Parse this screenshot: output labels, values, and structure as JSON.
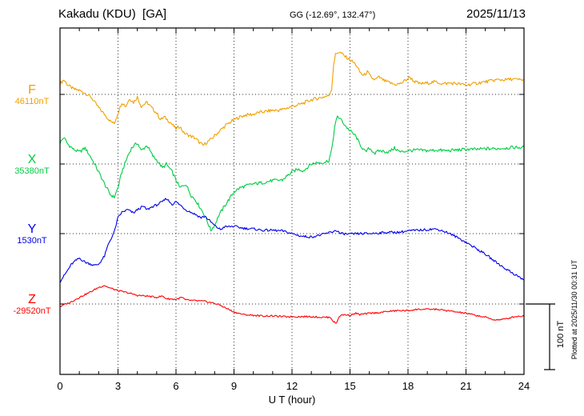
{
  "header": {
    "title": "Kakadu (KDU)  [GA]",
    "coords": "GG (-12.69°, 132.47°)",
    "date": "2025/11/13"
  },
  "footer": {
    "xlabel": "U T (hour)"
  },
  "side": {
    "scale_label": "100 nT",
    "plotted_at": "Plotted at 2025/11/30 00:31 UT"
  },
  "chart_data": {
    "type": "line",
    "title": "Kakadu (KDU) [GA] magnetogram 2025/11/13",
    "xlabel": "U T (hour)",
    "x_range": [
      0,
      24
    ],
    "x_ticks": [
      0,
      3,
      6,
      9,
      12,
      15,
      18,
      21,
      24
    ],
    "grid": "dotted",
    "scale_bar_nT": 100,
    "points_format": "[hour UT, offset in nT from base_nT]",
    "series": [
      {
        "name": "F",
        "label": "F",
        "base_label": "46110nT",
        "base_nT": 46110,
        "color": "#f0a000",
        "noise_nT": 2.5,
        "points": [
          [
            0,
            16
          ],
          [
            0.2,
            22
          ],
          [
            0.4,
            14
          ],
          [
            0.7,
            8
          ],
          [
            1,
            6
          ],
          [
            1.3,
            2
          ],
          [
            1.6,
            -4
          ],
          [
            2,
            -20
          ],
          [
            2.3,
            -30
          ],
          [
            2.6,
            -40
          ],
          [
            2.8,
            -44
          ],
          [
            3,
            -28
          ],
          [
            3.2,
            -12
          ],
          [
            3.4,
            -18
          ],
          [
            3.6,
            -6
          ],
          [
            3.8,
            -12
          ],
          [
            4,
            -4
          ],
          [
            4.2,
            -18
          ],
          [
            4.5,
            -12
          ],
          [
            4.8,
            -22
          ],
          [
            5,
            -28
          ],
          [
            5.2,
            -38
          ],
          [
            5.4,
            -34
          ],
          [
            5.7,
            -42
          ],
          [
            6,
            -52
          ],
          [
            6.2,
            -48
          ],
          [
            6.4,
            -58
          ],
          [
            6.7,
            -62
          ],
          [
            7,
            -66
          ],
          [
            7.2,
            -72
          ],
          [
            7.4,
            -77
          ],
          [
            7.6,
            -72
          ],
          [
            7.8,
            -68
          ],
          [
            8,
            -62
          ],
          [
            8.3,
            -54
          ],
          [
            8.6,
            -46
          ],
          [
            9,
            -38
          ],
          [
            9.3,
            -34
          ],
          [
            9.6,
            -31
          ],
          [
            10,
            -30
          ],
          [
            10.3,
            -27
          ],
          [
            10.6,
            -26
          ],
          [
            11,
            -24
          ],
          [
            11.3,
            -24
          ],
          [
            11.6,
            -22
          ],
          [
            12,
            -18
          ],
          [
            12.3,
            -16
          ],
          [
            12.6,
            -13
          ],
          [
            13,
            -8
          ],
          [
            13.3,
            -6
          ],
          [
            13.6,
            -4
          ],
          [
            13.9,
            -2
          ],
          [
            14.05,
            8
          ],
          [
            14.15,
            45
          ],
          [
            14.25,
            60
          ],
          [
            14.4,
            64
          ],
          [
            14.55,
            62
          ],
          [
            14.7,
            58
          ],
          [
            14.9,
            54
          ],
          [
            15.1,
            50
          ],
          [
            15.3,
            45
          ],
          [
            15.5,
            34
          ],
          [
            15.7,
            28
          ],
          [
            15.9,
            34
          ],
          [
            16.1,
            25
          ],
          [
            16.3,
            22
          ],
          [
            16.5,
            26
          ],
          [
            16.8,
            20
          ],
          [
            17,
            18
          ],
          [
            17.3,
            15
          ],
          [
            17.6,
            16
          ],
          [
            17.9,
            22
          ],
          [
            18.1,
            26
          ],
          [
            18.3,
            20
          ],
          [
            18.6,
            16
          ],
          [
            19,
            17
          ],
          [
            19.4,
            19
          ],
          [
            19.8,
            16
          ],
          [
            20.2,
            17
          ],
          [
            20.6,
            16
          ],
          [
            21,
            14
          ],
          [
            21.4,
            16
          ],
          [
            21.8,
            18
          ],
          [
            22.2,
            20
          ],
          [
            22.6,
            22
          ],
          [
            23,
            22
          ],
          [
            23.4,
            23
          ],
          [
            23.7,
            22
          ],
          [
            24,
            22
          ]
        ]
      },
      {
        "name": "X",
        "label": "X",
        "base_label": "35380nT",
        "base_nT": 35380,
        "color": "#00cc44",
        "noise_nT": 2.5,
        "points": [
          [
            0,
            32
          ],
          [
            0.2,
            40
          ],
          [
            0.4,
            30
          ],
          [
            0.7,
            22
          ],
          [
            1,
            18
          ],
          [
            1.3,
            24
          ],
          [
            1.6,
            10
          ],
          [
            2,
            -12
          ],
          [
            2.3,
            -30
          ],
          [
            2.6,
            -46
          ],
          [
            2.8,
            -50
          ],
          [
            3,
            -36
          ],
          [
            3.2,
            -12
          ],
          [
            3.5,
            12
          ],
          [
            3.7,
            24
          ],
          [
            4,
            32
          ],
          [
            4.2,
            20
          ],
          [
            4.5,
            28
          ],
          [
            4.8,
            12
          ],
          [
            5,
            6
          ],
          [
            5.3,
            -6
          ],
          [
            5.5,
            0
          ],
          [
            5.8,
            -12
          ],
          [
            6,
            -24
          ],
          [
            6.2,
            -36
          ],
          [
            6.5,
            -30
          ],
          [
            6.8,
            -48
          ],
          [
            7,
            -54
          ],
          [
            7.3,
            -68
          ],
          [
            7.5,
            -78
          ],
          [
            7.8,
            -100
          ],
          [
            8,
            -92
          ],
          [
            8.2,
            -78
          ],
          [
            8.5,
            -64
          ],
          [
            9,
            -42
          ],
          [
            9.3,
            -36
          ],
          [
            9.6,
            -33
          ],
          [
            10,
            -30
          ],
          [
            10.5,
            -28
          ],
          [
            11,
            -25
          ],
          [
            11.5,
            -24
          ],
          [
            12,
            -12
          ],
          [
            12.3,
            -8
          ],
          [
            12.6,
            -10
          ],
          [
            13,
            0
          ],
          [
            13.3,
            2
          ],
          [
            13.6,
            2
          ],
          [
            13.9,
            5
          ],
          [
            14.05,
            20
          ],
          [
            14.2,
            55
          ],
          [
            14.35,
            72
          ],
          [
            14.5,
            68
          ],
          [
            14.65,
            62
          ],
          [
            14.8,
            56
          ],
          [
            15,
            50
          ],
          [
            15.3,
            42
          ],
          [
            15.5,
            30
          ],
          [
            15.8,
            18
          ],
          [
            16,
            24
          ],
          [
            16.3,
            16
          ],
          [
            16.5,
            20
          ],
          [
            17,
            18
          ],
          [
            17.3,
            24
          ],
          [
            17.6,
            18
          ],
          [
            18,
            20
          ],
          [
            18.5,
            21
          ],
          [
            19,
            20
          ],
          [
            19.5,
            21
          ],
          [
            20,
            20
          ],
          [
            20.5,
            21
          ],
          [
            21,
            22
          ],
          [
            21.5,
            22
          ],
          [
            22,
            23
          ],
          [
            22.5,
            23
          ],
          [
            23,
            24
          ],
          [
            23.5,
            25
          ],
          [
            24,
            25
          ]
        ]
      },
      {
        "name": "Y",
        "label": "Y",
        "base_label": "1530nT",
        "base_nT": 1530,
        "color": "#0000ee",
        "noise_nT": 1.8,
        "points": [
          [
            0,
            -72
          ],
          [
            0.2,
            -64
          ],
          [
            0.4,
            -55
          ],
          [
            0.6,
            -46
          ],
          [
            0.8,
            -41
          ],
          [
            1,
            -37
          ],
          [
            1.3,
            -43
          ],
          [
            1.6,
            -46
          ],
          [
            1.8,
            -48
          ],
          [
            2,
            -46
          ],
          [
            2.3,
            -34
          ],
          [
            2.5,
            -16
          ],
          [
            2.8,
            2
          ],
          [
            3,
            24
          ],
          [
            3.2,
            32
          ],
          [
            3.5,
            36
          ],
          [
            3.8,
            31
          ],
          [
            4,
            36
          ],
          [
            4.3,
            41
          ],
          [
            4.5,
            36
          ],
          [
            4.8,
            41
          ],
          [
            5,
            43
          ],
          [
            5.3,
            48
          ],
          [
            5.5,
            53
          ],
          [
            5.8,
            44
          ],
          [
            6,
            48
          ],
          [
            6.3,
            41
          ],
          [
            6.5,
            36
          ],
          [
            7,
            29
          ],
          [
            7.3,
            24
          ],
          [
            7.5,
            26
          ],
          [
            8,
            12
          ],
          [
            8.3,
            6
          ],
          [
            8.5,
            10
          ],
          [
            9,
            11
          ],
          [
            9.5,
            8
          ],
          [
            10,
            7
          ],
          [
            10.5,
            5
          ],
          [
            11,
            5
          ],
          [
            11.5,
            4
          ],
          [
            12,
            0
          ],
          [
            12.5,
            -4
          ],
          [
            13,
            -5
          ],
          [
            13.5,
            -2
          ],
          [
            14,
            2
          ],
          [
            14.3,
            5
          ],
          [
            14.5,
            0
          ],
          [
            15,
            -1
          ],
          [
            15.5,
            0
          ],
          [
            16,
            0
          ],
          [
            16.5,
            1
          ],
          [
            17,
            2
          ],
          [
            17.5,
            2
          ],
          [
            18,
            4
          ],
          [
            18.5,
            5
          ],
          [
            19,
            6
          ],
          [
            19.3,
            7
          ],
          [
            19.6,
            6
          ],
          [
            20,
            2
          ],
          [
            20.5,
            -5
          ],
          [
            21,
            -13
          ],
          [
            21.5,
            -22
          ],
          [
            22,
            -31
          ],
          [
            22.5,
            -42
          ],
          [
            23,
            -52
          ],
          [
            23.5,
            -61
          ],
          [
            24,
            -70
          ]
        ]
      },
      {
        "name": "Z",
        "label": "Z",
        "base_label": "-29520nT",
        "base_nT": -29520,
        "color": "#ff0000",
        "noise_nT": 1.2,
        "points": [
          [
            0,
            -4
          ],
          [
            0.3,
            0
          ],
          [
            0.5,
            2
          ],
          [
            1,
            10
          ],
          [
            1.5,
            17
          ],
          [
            2,
            25
          ],
          [
            2.3,
            28
          ],
          [
            2.5,
            25
          ],
          [
            3,
            20
          ],
          [
            3.5,
            17
          ],
          [
            4,
            13
          ],
          [
            4.5,
            12
          ],
          [
            5,
            10
          ],
          [
            5.3,
            12
          ],
          [
            5.5,
            8
          ],
          [
            6,
            7
          ],
          [
            6.3,
            10
          ],
          [
            6.5,
            6
          ],
          [
            7,
            5
          ],
          [
            7.5,
            4
          ],
          [
            8,
            1
          ],
          [
            8.3,
            -2
          ],
          [
            8.5,
            -5
          ],
          [
            9,
            -12
          ],
          [
            9.5,
            -16
          ],
          [
            10,
            -17
          ],
          [
            10.5,
            -18
          ],
          [
            11,
            -18
          ],
          [
            11.5,
            -19
          ],
          [
            12,
            -19
          ],
          [
            12.5,
            -19
          ],
          [
            13,
            -19
          ],
          [
            13.5,
            -20
          ],
          [
            14,
            -20
          ],
          [
            14.15,
            -27
          ],
          [
            14.3,
            -29
          ],
          [
            14.45,
            -18
          ],
          [
            14.7,
            -16
          ],
          [
            15,
            -17
          ],
          [
            15.3,
            -14
          ],
          [
            15.5,
            -16
          ],
          [
            16,
            -14
          ],
          [
            16.5,
            -13
          ],
          [
            17,
            -11
          ],
          [
            17.5,
            -10
          ],
          [
            18,
            -10
          ],
          [
            18.5,
            -8
          ],
          [
            19,
            -8
          ],
          [
            19.5,
            -8
          ],
          [
            20,
            -10
          ],
          [
            20.5,
            -12
          ],
          [
            21,
            -14
          ],
          [
            21.5,
            -17
          ],
          [
            22,
            -20
          ],
          [
            22.5,
            -24
          ],
          [
            23,
            -23
          ],
          [
            23.5,
            -19
          ],
          [
            24,
            -18
          ]
        ]
      }
    ]
  }
}
